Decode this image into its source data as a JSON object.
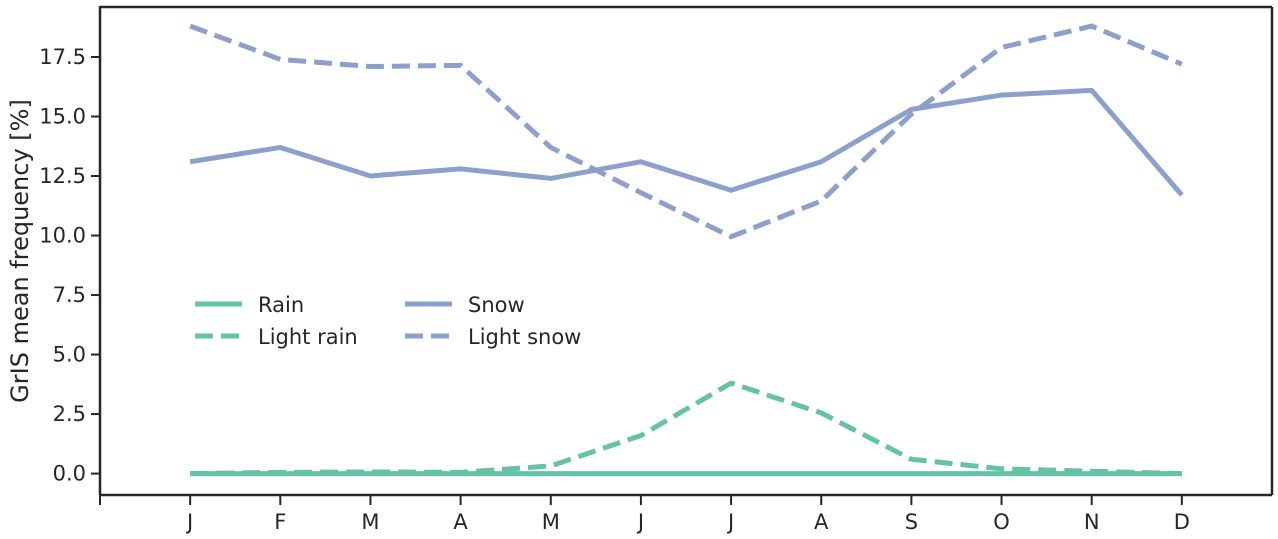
{
  "chart_data": {
    "type": "line",
    "title": "",
    "xlabel": "",
    "ylabel": "GrIS mean frequency [%]",
    "categories": [
      "J",
      "F",
      "M",
      "A",
      "M",
      "J",
      "J",
      "A",
      "S",
      "O",
      "N",
      "D"
    ],
    "xlim": [
      -1,
      12
    ],
    "ylim": [
      -0.9,
      19.6
    ],
    "yticks": [
      0.0,
      2.5,
      5.0,
      7.5,
      10.0,
      12.5,
      15.0,
      17.5
    ],
    "ytick_labels": [
      "0.0",
      "2.5",
      "5.0",
      "7.5",
      "10.0",
      "12.5",
      "15.0",
      "17.5"
    ],
    "grid": false,
    "legend": {
      "placement": "center-left",
      "columns": 2
    },
    "series": [
      {
        "name": "Rain",
        "color": "#66c2a5",
        "dash": "solid",
        "values": [
          0.0,
          0.0,
          0.0,
          0.0,
          0.0,
          0.0,
          0.0,
          0.0,
          0.0,
          0.0,
          0.0,
          0.0
        ]
      },
      {
        "name": "Light rain",
        "color": "#66c2a5",
        "dash": "dashed",
        "values": [
          0.0,
          0.05,
          0.07,
          0.05,
          0.32,
          1.6,
          3.8,
          2.55,
          0.6,
          0.2,
          0.1,
          0.0
        ]
      },
      {
        "name": "Snow",
        "color": "#8da0cb",
        "dash": "solid",
        "values": [
          13.1,
          13.7,
          12.5,
          12.8,
          12.4,
          13.1,
          11.9,
          13.1,
          15.3,
          15.9,
          16.1,
          11.7
        ]
      },
      {
        "name": "Light snow",
        "color": "#8da0cb",
        "dash": "dashed",
        "values": [
          18.8,
          17.4,
          17.1,
          17.15,
          13.7,
          11.8,
          9.95,
          11.45,
          15.1,
          17.9,
          18.8,
          17.2
        ]
      }
    ]
  }
}
